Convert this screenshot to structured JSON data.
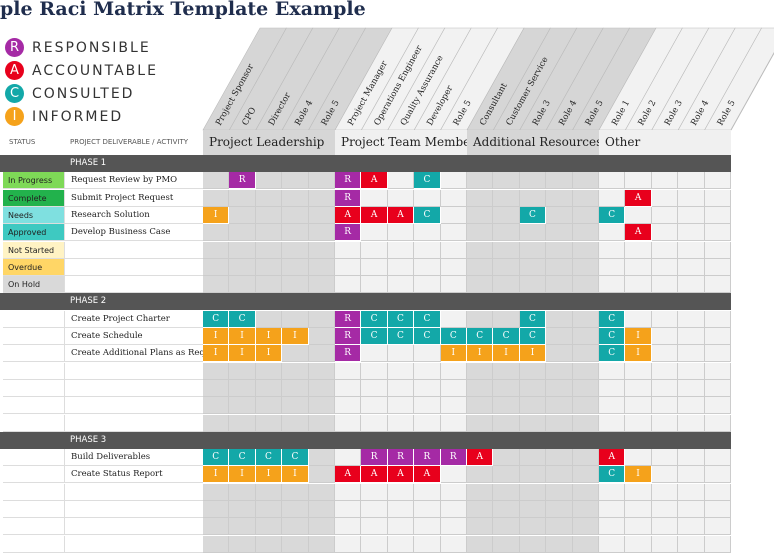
{
  "title": "ple Raci Matrix Template Example",
  "legend": [
    {
      "letter": "R",
      "label": "RESPONSIBLE",
      "color": "#a52aa5"
    },
    {
      "letter": "A",
      "label": "ACCOUNTABLE",
      "color": "#e8001c"
    },
    {
      "letter": "C",
      "label": "CONSULTED",
      "color": "#13a8a8"
    },
    {
      "letter": "I",
      "label": "INFORMED",
      "color": "#f5a21b"
    }
  ],
  "headers": {
    "status": "STATUS",
    "activity": "PROJECT DELIVERABLE / ACTIVITY"
  },
  "groups": [
    {
      "label": "Project Leadership",
      "roles": [
        "Project Sponsor",
        "CPO",
        "Director",
        "Role 4",
        "Role 5"
      ]
    },
    {
      "label": "Project Team Members",
      "roles": [
        "Project Manager",
        "Operations Engineer",
        "Quality Assurance",
        "Developer",
        "Role 5"
      ]
    },
    {
      "label": "Additional Resources",
      "roles": [
        "Consultant",
        "Customer Service",
        "Role 3",
        "Role 4",
        "Role 5"
      ]
    },
    {
      "label": "Other",
      "roles": [
        "Role 1",
        "Role 2",
        "Role 3",
        "Role 4",
        "Role 5"
      ]
    }
  ],
  "status_colors": {
    "In Progress": "#7ed957",
    "Complete": "#22b24c",
    "Needs Review": "#7fe0e0",
    "Approved": "#3ec9c1",
    "Not Started": "#fff3c4",
    "Overdue": "#ffd666",
    "On Hold": "#d9d9d9"
  },
  "mark_colors": {
    "R": "#a52aa5",
    "A": "#e8001c",
    "C": "#13a8a8",
    "I": "#f5a21b"
  },
  "rows": [
    {
      "type": "phase",
      "label": "PHASE 1"
    },
    {
      "status": "In Progress",
      "activity": "Request Review by PMO",
      "marks": [
        "",
        "R",
        "",
        "",
        "",
        "R",
        "A",
        "",
        "C",
        "",
        "",
        "",
        "",
        "",
        "",
        "",
        "",
        "",
        "",
        ""
      ]
    },
    {
      "status": "Complete",
      "activity": "Submit Project Request",
      "marks": [
        "",
        "",
        "",
        "",
        "",
        "R",
        "",
        "",
        "",
        "",
        "",
        "",
        "",
        "",
        "",
        "",
        "A",
        "",
        "",
        ""
      ]
    },
    {
      "status": "Needs Review",
      "activity": "Research Solution",
      "marks": [
        "I",
        "",
        "",
        "",
        "",
        "A",
        "A",
        "A",
        "C",
        "",
        "",
        "",
        "C",
        "",
        "",
        "C",
        "",
        "",
        "",
        ""
      ]
    },
    {
      "status": "Approved",
      "activity": "Develop Business Case",
      "marks": [
        "",
        "",
        "",
        "",
        "",
        "R",
        "",
        "",
        "",
        "",
        "",
        "",
        "",
        "",
        "",
        "",
        "A",
        "",
        "",
        ""
      ]
    },
    {
      "status": "Not Started",
      "activity": "",
      "marks": []
    },
    {
      "status": "Overdue",
      "activity": "",
      "marks": []
    },
    {
      "status": "On Hold",
      "activity": "",
      "marks": []
    },
    {
      "type": "phase",
      "label": "PHASE 2"
    },
    {
      "status": "",
      "activity": "Create Project Charter",
      "marks": [
        "C",
        "C",
        "",
        "",
        "",
        "R",
        "C",
        "C",
        "C",
        "",
        "",
        "",
        "C",
        "",
        "",
        "C",
        "",
        "",
        "",
        ""
      ]
    },
    {
      "status": "",
      "activity": "Create Schedule",
      "marks": [
        "I",
        "I",
        "I",
        "I",
        "",
        "R",
        "C",
        "C",
        "C",
        "C",
        "C",
        "C",
        "C",
        "",
        "",
        "C",
        "I",
        "",
        "",
        ""
      ]
    },
    {
      "status": "",
      "activity": "Create Additional Plans as Required",
      "marks": [
        "I",
        "I",
        "I",
        "",
        "",
        "R",
        "",
        "",
        "",
        "I",
        "I",
        "I",
        "I",
        "",
        "",
        "C",
        "I",
        "",
        "",
        ""
      ]
    },
    {
      "status": "",
      "activity": "",
      "marks": []
    },
    {
      "status": "",
      "activity": "",
      "marks": []
    },
    {
      "status": "",
      "activity": "",
      "marks": []
    },
    {
      "status": "",
      "activity": "",
      "marks": []
    },
    {
      "type": "phase",
      "label": "PHASE 3"
    },
    {
      "status": "",
      "activity": "Build Deliverables",
      "marks": [
        "C",
        "C",
        "C",
        "C",
        "",
        "",
        "R",
        "R",
        "R",
        "R",
        "A",
        "",
        "",
        "",
        "",
        "A",
        "",
        "",
        "",
        ""
      ]
    },
    {
      "status": "",
      "activity": "Create Status Report",
      "marks": [
        "I",
        "I",
        "I",
        "I",
        "",
        "A",
        "A",
        "A",
        "A",
        "",
        "",
        "",
        "",
        "",
        "",
        "C",
        "I",
        "",
        "",
        ""
      ]
    },
    {
      "status": "",
      "activity": "",
      "marks": []
    },
    {
      "status": "",
      "activity": "",
      "marks": []
    },
    {
      "status": "",
      "activity": "",
      "marks": []
    },
    {
      "status": "",
      "activity": "",
      "marks": []
    }
  ]
}
